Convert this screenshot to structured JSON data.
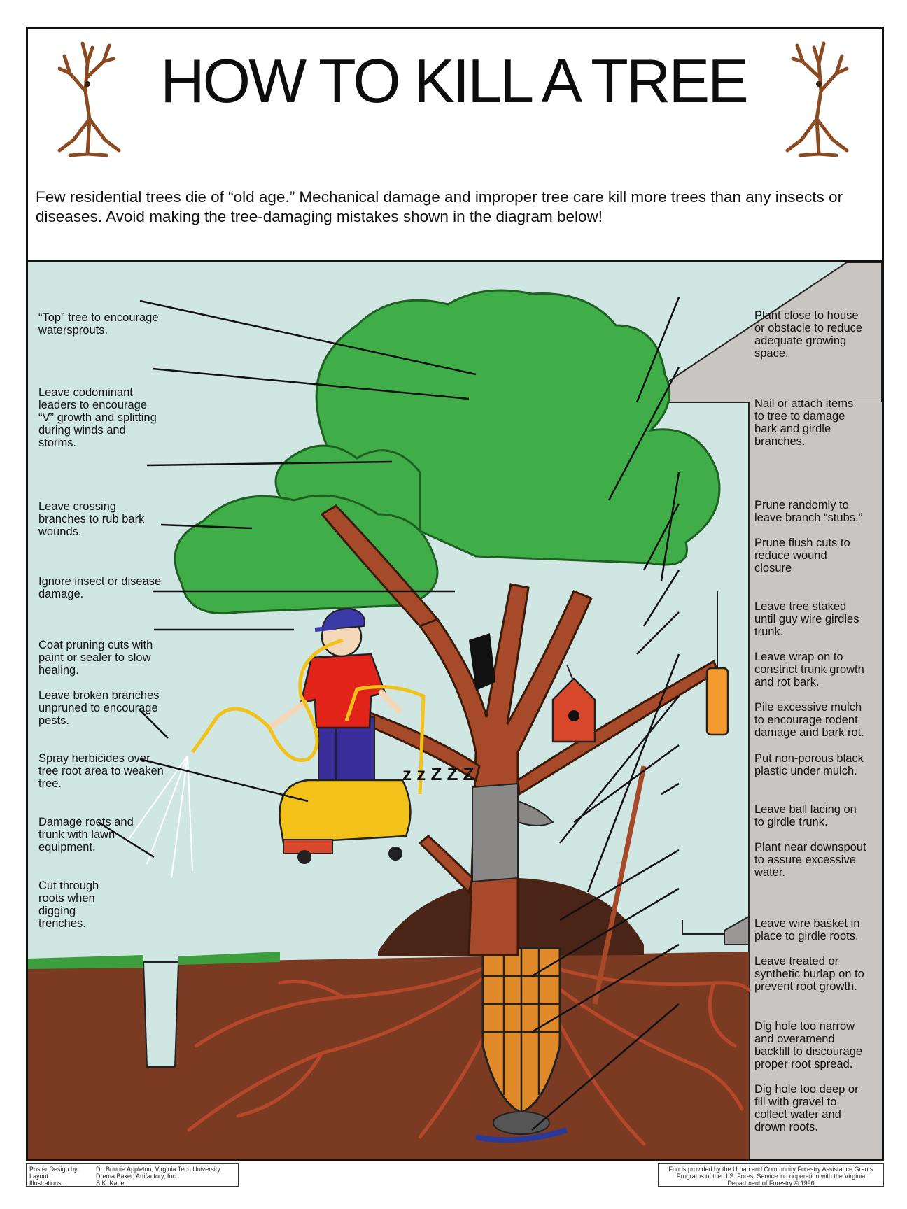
{
  "title": "HOW TO KILL A TREE",
  "intro": "Few residential trees die of “old age.” Mechanical damage and improper tree care kill more trees than any insects or diseases. Avoid making the tree-damaging mistakes shown in the diagram below!",
  "snore": "z z Z Z Z",
  "left_labels": [
    "“Top” tree to encourage\nwatersprouts.",
    "Leave codominant\nleaders to encourage\n“V” growth and splitting\nduring winds and\nstorms.",
    "Leave crossing\nbranches to rub bark\nwounds.",
    "Ignore insect or disease\ndamage.",
    "Coat pruning cuts with\npaint or sealer to slow\nhealing.",
    "Leave broken branches\nunpruned to encourage\npests.",
    "Spray herbicides over\ntree root area to weaken\ntree.",
    "Damage roots and\ntrunk with lawn\nequipment.",
    "Cut through\nroots when\ndigging\ntrenches."
  ],
  "right_labels": [
    "Plant close to house\nor obstacle to reduce\nadequate growing\nspace.",
    "Nail or attach items\nto tree to damage\nbark and girdle\nbranches.",
    "Prune randomly to\nleave branch “stubs.”",
    "Prune flush cuts to\nreduce wound\nclosure",
    "Leave tree staked\nuntil guy wire girdles\ntrunk.",
    "Leave wrap on to\nconstrict trunk growth\nand rot bark.",
    "Pile excessive mulch\nto encourage rodent\ndamage and bark rot.",
    "Put non-porous black\nplastic under mulch.",
    "Leave ball lacing on\nto girdle trunk.",
    "Plant near downspout\nto assure excessive\nwater.",
    "Leave wire basket in\nplace to girdle roots.",
    "Leave treated or\nsynthetic burlap on to\nprevent root growth.",
    "Dig hole too narrow\nand overamend\nbackfill to discourage\nproper root spread.",
    "Dig hole too deep or\nfill with gravel to\ncollect water and\ndrown roots."
  ],
  "credits_left": [
    {
      "role": "Poster Design by:",
      "name": "Dr. Bonnie Appleton, Virginia Tech University"
    },
    {
      "role": "Layout:",
      "name": "Drema Baker, Artifactory, Inc."
    },
    {
      "role": "Illustrations:",
      "name": "S.K. Kane"
    }
  ],
  "credits_right": "Funds provided by the Urban and Community Forestry Assistance Grants Programs of the U.S. Forest Service in cooperation with the Virginia Department of Forestry © 1996",
  "colors": {
    "sky": "#cfe6e3",
    "house": "#c9c5c2",
    "soil": "#7a3b22",
    "foliage": "#3fae49",
    "trunk": "#a64a2a",
    "grass": "#3c9e3c",
    "shirt": "#e2231a",
    "pants": "#3a2e9a",
    "cap": "#3a3aa8",
    "mower": "#f2c21a",
    "birdhouse": "#d9472b",
    "feeder": "#f29a2e",
    "burlap": "#e08a2a"
  }
}
